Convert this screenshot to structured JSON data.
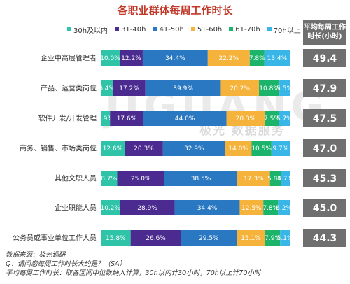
{
  "title": "各职业群体每周工作时长",
  "avg_header": {
    "line1": "平均每周工作",
    "line2": "时长(小时)"
  },
  "watermark": {
    "big": "JIGUANG",
    "small": "极光 数据服务"
  },
  "notes": {
    "source": "数据来源：极光调研",
    "question": "Q：请问您每周工作时长大约是？（SA）",
    "method": "平均每周工作时长：取各区间中位数纳入计算，30h以内计30小时，70h以上计70小时"
  },
  "colors": {
    "lt30": "#2fc3a8",
    "31_40": "#4b2b8f",
    "41_50": "#2a78c2",
    "51_60": "#f6b33c",
    "61_70": "#1cb36a",
    "gt70": "#39b6e8",
    "avg_box": "#6f6f6f"
  },
  "chart_data": {
    "type": "bar",
    "orientation": "horizontal",
    "stacked": true,
    "percent": true,
    "title": "各职业群体每周工作时长",
    "categories": [
      "企业中高层管理者",
      "产品、运营类岗位",
      "软件开发/开发管理",
      "商务、销售、市场类岗位",
      "其他文职人员",
      "企业职能人员",
      "公务员或事业单位工作人员"
    ],
    "series": [
      {
        "name": "30h及以内",
        "color_key": "lt30",
        "values": [
          10.0,
          6.4,
          4.9,
          12.6,
          8.7,
          10.2,
          15.8
        ],
        "labels": [
          "10.0%",
          "6.4%",
          "4.9%",
          "12.6%",
          "8.7%",
          "10.2%",
          "15.8%"
        ]
      },
      {
        "name": "31-40h",
        "color_key": "31_40",
        "values": [
          12.2,
          17.2,
          17.6,
          20.3,
          25.0,
          28.9,
          26.6
        ],
        "labels": [
          "12.2%",
          "17.2%",
          "17.6%",
          "20.3%",
          "25.0%",
          "28.9%",
          "26.6%"
        ]
      },
      {
        "name": "41-50h",
        "color_key": "41_50",
        "values": [
          34.4,
          39.9,
          44.0,
          32.9,
          38.5,
          34.4,
          29.5
        ],
        "labels": [
          "34.4%",
          "39.9%",
          "44.0%",
          "32.9%",
          "38.5%",
          "34.4%",
          "29.5%"
        ]
      },
      {
        "name": "51-60h",
        "color_key": "51_60",
        "values": [
          22.2,
          20.2,
          20.3,
          14.0,
          17.3,
          12.5,
          15.1
        ],
        "labels": [
          "22.2%",
          "20.2%",
          "20.3%",
          "14.0%",
          "17.3%",
          "12.5%",
          "15.1%"
        ]
      },
      {
        "name": "61-70h",
        "color_key": "61_70",
        "values": [
          7.8,
          10.8,
          7.5,
          10.5,
          5.8,
          7.8,
          7.9
        ],
        "labels": [
          "7.8%",
          "10.8%",
          "7.5%",
          "10.5%",
          "5.8%",
          "7.8%",
          "7.9%"
        ]
      },
      {
        "name": "70h以上",
        "color_key": "gt70",
        "values": [
          13.4,
          5.5,
          5.7,
          9.7,
          4.7,
          6.2,
          5.1
        ],
        "labels": [
          "13.4%",
          "5.5%",
          "5.7%",
          "9.7%",
          "4.7%",
          "6.2%",
          "5.1%"
        ]
      }
    ],
    "averages": [
      "49.4",
      "47.9",
      "47.5",
      "47.0",
      "45.3",
      "45.0",
      "44.3"
    ],
    "xlim": [
      0,
      100
    ],
    "legend_position": "top",
    "grid": false
  }
}
